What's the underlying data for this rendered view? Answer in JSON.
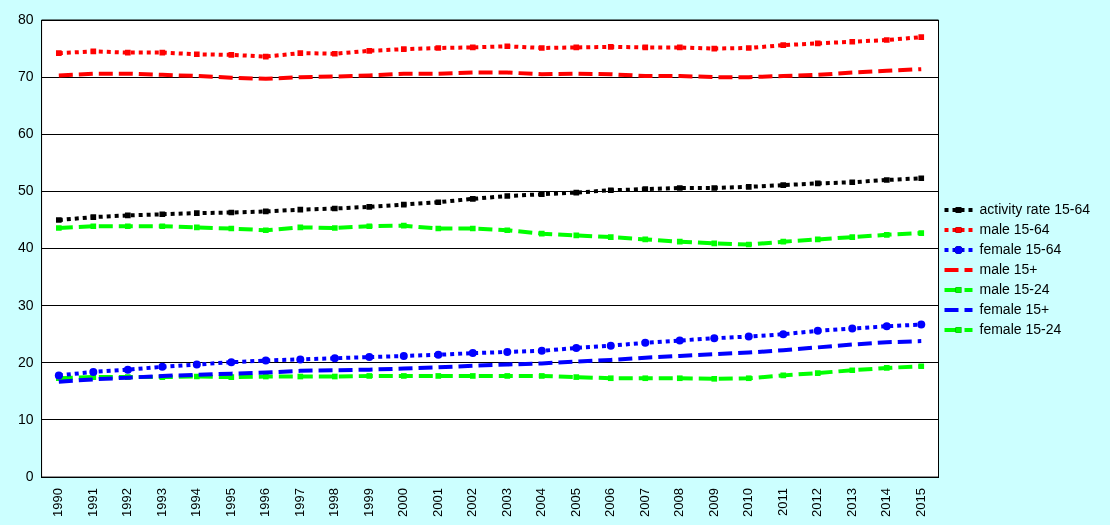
{
  "chart_data": {
    "type": "line",
    "categories": [
      "1990",
      "1991",
      "1992",
      "1993",
      "1994",
      "1995",
      "1996",
      "1997",
      "1998",
      "1999",
      "2000",
      "2001",
      "2002",
      "2003",
      "2004",
      "2005",
      "2006",
      "2007",
      "2008",
      "2009",
      "2010",
      "2011",
      "2012",
      "2013",
      "2014",
      "2015"
    ],
    "ylim": [
      0,
      80
    ],
    "yticks": [
      0,
      10,
      20,
      30,
      40,
      50,
      60,
      70,
      80
    ],
    "grid": "y",
    "legend": "right",
    "series": [
      {
        "name": "activity rate 15-64",
        "color": "#000000",
        "line_style": "dotted",
        "marker": "square",
        "values": [
          45.0,
          45.5,
          45.8,
          46.0,
          46.2,
          46.3,
          46.5,
          46.8,
          47.0,
          47.3,
          47.7,
          48.1,
          48.7,
          49.2,
          49.5,
          49.8,
          50.2,
          50.4,
          50.6,
          50.6,
          50.8,
          51.1,
          51.4,
          51.6,
          52.0,
          52.3
        ]
      },
      {
        "name": "male 15-64",
        "color": "#ff0000",
        "line_style": "dotted",
        "marker": "square",
        "values": [
          74.2,
          74.5,
          74.3,
          74.3,
          74.0,
          73.9,
          73.6,
          74.2,
          74.1,
          74.6,
          74.9,
          75.1,
          75.2,
          75.4,
          75.1,
          75.2,
          75.3,
          75.2,
          75.2,
          75.0,
          75.1,
          75.6,
          75.9,
          76.2,
          76.5,
          77.0
        ]
      },
      {
        "name": "female 15-64",
        "color": "#0000ff",
        "line_style": "dotted",
        "marker": "circle",
        "values": [
          17.8,
          18.4,
          18.8,
          19.3,
          19.7,
          20.1,
          20.4,
          20.6,
          20.8,
          21.0,
          21.2,
          21.4,
          21.7,
          21.9,
          22.1,
          22.6,
          23.0,
          23.5,
          23.9,
          24.3,
          24.6,
          25.0,
          25.6,
          26.0,
          26.4,
          26.7
        ]
      },
      {
        "name": "male 15+",
        "color": "#ff0000",
        "line_style": "dashed",
        "marker": "none",
        "values": [
          70.3,
          70.6,
          70.6,
          70.4,
          70.2,
          69.9,
          69.7,
          70.0,
          70.1,
          70.3,
          70.6,
          70.6,
          70.8,
          70.8,
          70.5,
          70.6,
          70.5,
          70.2,
          70.2,
          70.0,
          70.0,
          70.2,
          70.4,
          70.8,
          71.1,
          71.4
        ]
      },
      {
        "name": "male 15-24",
        "color": "#00ff00",
        "line_style": "dashed",
        "marker": "square",
        "values": [
          43.6,
          43.9,
          43.9,
          43.9,
          43.7,
          43.5,
          43.2,
          43.7,
          43.6,
          43.9,
          44.0,
          43.5,
          43.5,
          43.2,
          42.6,
          42.3,
          42.0,
          41.6,
          41.2,
          40.9,
          40.7,
          41.2,
          41.6,
          42.0,
          42.4,
          42.7
        ]
      },
      {
        "name": "female 15+",
        "color": "#0000ff",
        "line_style": "dashed",
        "marker": "none",
        "values": [
          16.7,
          17.1,
          17.4,
          17.7,
          17.9,
          18.1,
          18.3,
          18.6,
          18.7,
          18.8,
          19.0,
          19.2,
          19.5,
          19.7,
          19.9,
          20.2,
          20.5,
          20.9,
          21.2,
          21.5,
          21.8,
          22.2,
          22.7,
          23.2,
          23.6,
          23.8
        ]
      },
      {
        "name": "female 15-24",
        "color": "#00ff00",
        "line_style": "dashed",
        "marker": "square",
        "values": [
          17.3,
          17.5,
          17.5,
          17.5,
          17.6,
          17.5,
          17.6,
          17.6,
          17.6,
          17.7,
          17.7,
          17.7,
          17.7,
          17.7,
          17.7,
          17.5,
          17.3,
          17.3,
          17.3,
          17.2,
          17.3,
          17.8,
          18.2,
          18.7,
          19.1,
          19.4
        ]
      }
    ]
  }
}
